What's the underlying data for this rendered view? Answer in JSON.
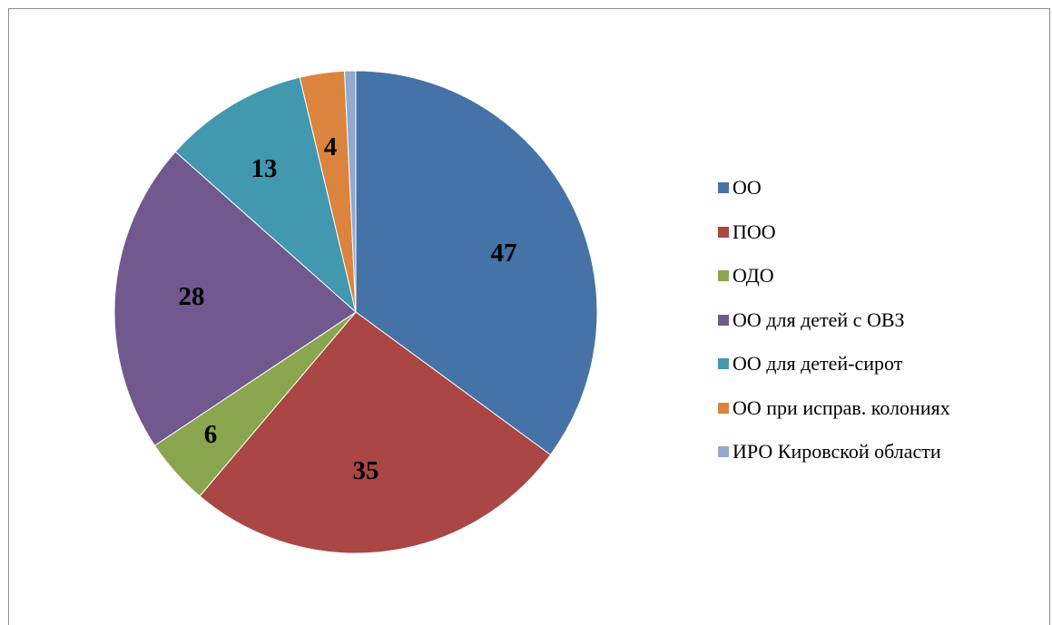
{
  "chart_data": {
    "type": "pie",
    "title": "",
    "start_angle_deg": 0,
    "direction": "clockwise",
    "legend_position": "right",
    "slices": [
      {
        "label": "ОО",
        "value": 47,
        "data_label": "47",
        "color": "#4572A7"
      },
      {
        "label": "ПОО",
        "value": 35,
        "data_label": "35",
        "color": "#AA4643"
      },
      {
        "label": "ОДО",
        "value": 6,
        "data_label": "6",
        "color": "#89A54E"
      },
      {
        "label": "ОО для детей с ОВЗ",
        "value": 28,
        "data_label": "28",
        "color": "#71588F"
      },
      {
        "label": "ОО для детей-сирот",
        "value": 13,
        "data_label": "13",
        "color": "#4198AF"
      },
      {
        "label": "ОО при исправ. колониях",
        "value": 4,
        "data_label": "4",
        "color": "#DB843D"
      },
      {
        "label": "ИРО Кировской области",
        "value": 1,
        "data_label": "",
        "color": "#93A9CF"
      }
    ]
  }
}
